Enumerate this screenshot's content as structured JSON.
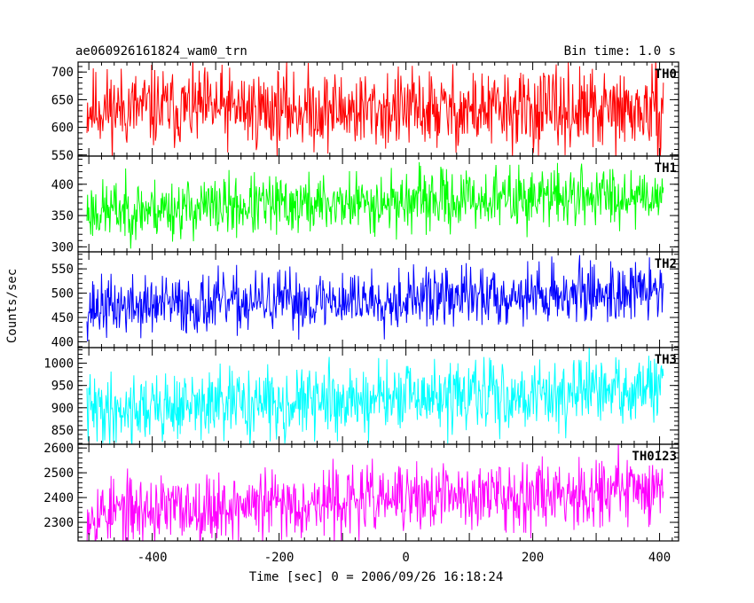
{
  "header": {
    "title": "ae060926161824_wam0_trn",
    "bin_time": "Bin time: 1.0 s"
  },
  "chart_data": {
    "type": "line",
    "xlabel": "Time [sec] 0 = 2006/09/26 16:18:24",
    "ylabel": "Counts/sec",
    "xlim": [
      -517,
      430
    ],
    "x_ticks": [
      -400,
      -200,
      0,
      200,
      400
    ],
    "x_start": -503,
    "x_end": 406,
    "x_step": 1,
    "grid": false,
    "panels": [
      {
        "name": "TH0",
        "color": "#ff0000",
        "ylim": [
          548,
          718
        ],
        "y_ticks": [
          550,
          600,
          650,
          700
        ],
        "trend": {
          "start": 635,
          "end": 628
        },
        "noise_amplitude": 42,
        "seed": 11
      },
      {
        "name": "TH1",
        "color": "#00ff00",
        "ylim": [
          292,
          445
        ],
        "y_ticks": [
          300,
          350,
          400
        ],
        "trend": {
          "start": 357,
          "end": 385
        },
        "noise_amplitude": 28,
        "seed": 23
      },
      {
        "name": "TH2",
        "color": "#0000ff",
        "ylim": [
          388,
          585
        ],
        "y_ticks": [
          400,
          450,
          500,
          550
        ],
        "trend": {
          "start": 470,
          "end": 505
        },
        "noise_amplitude": 36,
        "seed": 37
      },
      {
        "name": "TH3",
        "color": "#00ffff",
        "ylim": [
          818,
          1035
        ],
        "y_ticks": [
          850,
          900,
          950,
          1000
        ],
        "trend": {
          "start": 895,
          "end": 940
        },
        "noise_amplitude": 45,
        "seed": 41
      },
      {
        "name": "TH0123",
        "color": "#ff00ff",
        "ylim": [
          2225,
          2615
        ],
        "y_ticks": [
          2300,
          2400,
          2500,
          2600
        ],
        "trend": {
          "start": 2340,
          "end": 2440
        },
        "noise_amplitude": 80,
        "seed": 53
      }
    ]
  }
}
